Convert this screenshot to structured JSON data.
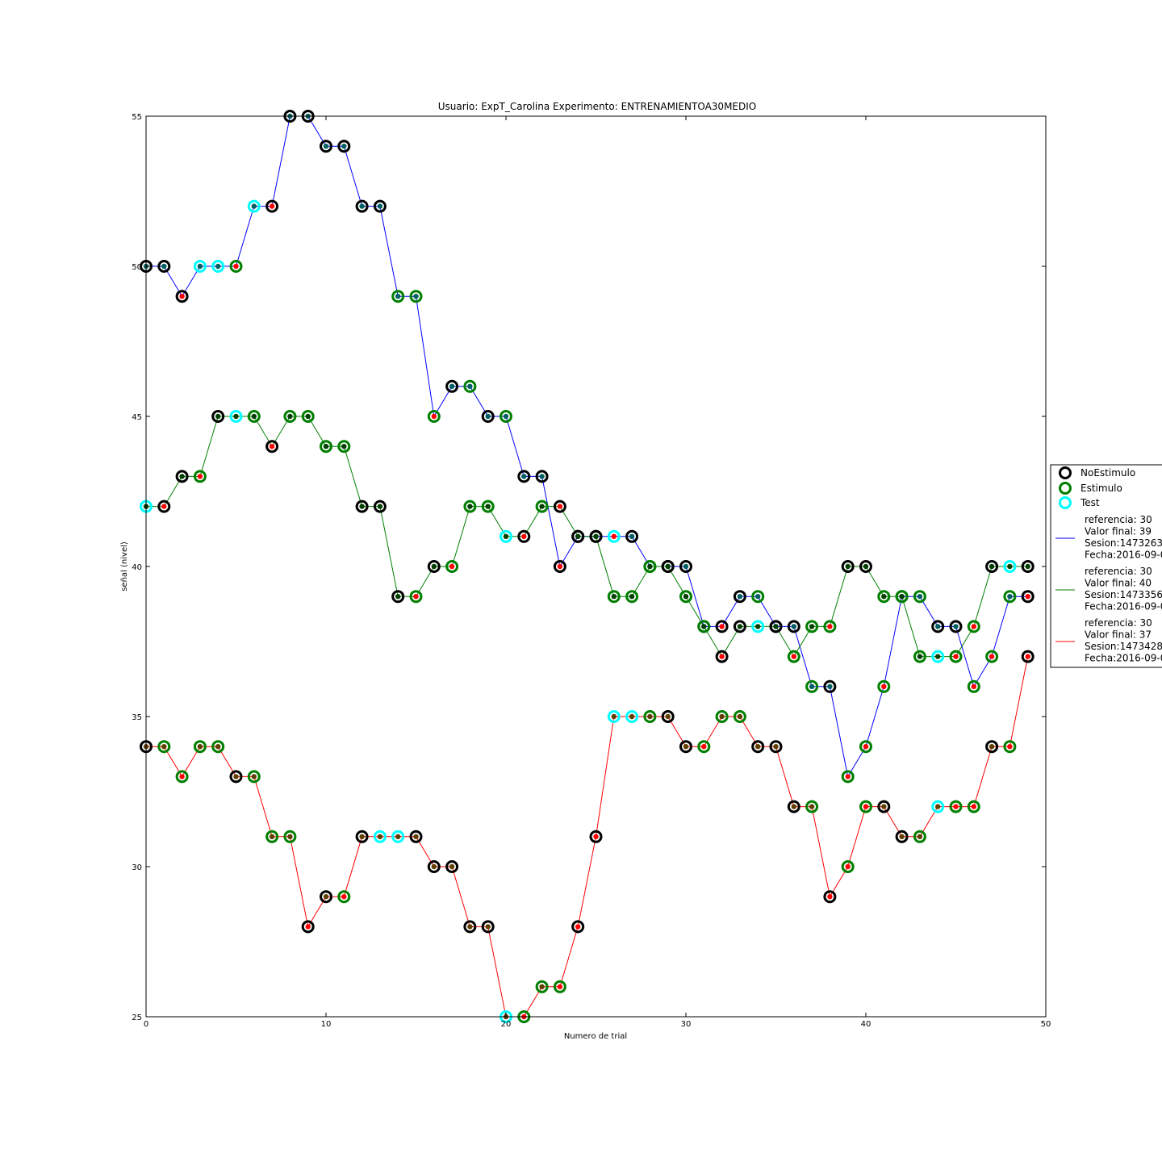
{
  "chart_data": {
    "type": "line",
    "title": "Usuario: ExpT_Carolina Experimento: ENTRENAMIENTOA30MEDIO",
    "xlabel": "Numero de trial",
    "ylabel": "señal (nivel)",
    "xlim": [
      0,
      50
    ],
    "ylim": [
      25,
      55
    ],
    "xticks": [
      "0",
      "10",
      "20",
      "30",
      "40",
      "50"
    ],
    "yticks": [
      "25",
      "30",
      "35",
      "40",
      "45",
      "50",
      "55"
    ],
    "grid": false,
    "legend_position": "right",
    "marker_legend": [
      {
        "label": "NoEstimulo",
        "color": "#000000"
      },
      {
        "label": "Estimulo",
        "color": "#007f00"
      },
      {
        "label": "Test",
        "color": "#00ffff"
      }
    ],
    "marker_codes": {
      "N": "NoEstimulo",
      "E": "Estimulo",
      "T": "Test"
    },
    "series": [
      {
        "color": "#0000ff",
        "legend_lines": [
          "referencia: 30",
          "Valor final: 39",
          "Sesion:1473263",
          "Fecha:2016-09-0"
        ],
        "x": [
          0,
          1,
          2,
          3,
          4,
          5,
          6,
          7,
          8,
          9,
          10,
          11,
          12,
          13,
          14,
          15,
          16,
          17,
          18,
          19,
          20,
          21,
          22,
          23,
          24,
          25,
          26,
          27,
          28,
          29,
          30,
          31,
          32,
          33,
          34,
          35,
          36,
          37,
          38,
          39,
          40,
          41,
          42,
          43,
          44,
          45,
          46,
          47,
          48,
          49
        ],
        "y": [
          50,
          50,
          49,
          50,
          50,
          50,
          52,
          52,
          55,
          55,
          54,
          54,
          52,
          52,
          49,
          49,
          45,
          46,
          46,
          45,
          45,
          43,
          43,
          40,
          41,
          41,
          41,
          41,
          40,
          40,
          40,
          38,
          38,
          39,
          39,
          38,
          38,
          36,
          36,
          33,
          34,
          36,
          39,
          39,
          38,
          38,
          36,
          37,
          39,
          39
        ],
        "markers": [
          "N",
          "N",
          "N",
          "T",
          "T",
          "E",
          "T",
          "N",
          "N",
          "N",
          "N",
          "N",
          "N",
          "N",
          "E",
          "E",
          "E",
          "N",
          "E",
          "N",
          "E",
          "N",
          "N",
          "N",
          "N",
          "N",
          "T",
          "N",
          "E",
          "N",
          "N",
          "N",
          "N",
          "N",
          "E",
          "N",
          "N",
          "E",
          "N",
          "E",
          "E",
          "E",
          "E",
          "E",
          "N",
          "N",
          "E",
          "E",
          "E",
          "N"
        ],
        "dot_colors": [
          "#005f5f",
          "#005f5f",
          "#ff0000",
          "#005f5f",
          "#005f5f",
          "#ff0000",
          "#005f5f",
          "#ff0000",
          "#005f5f",
          "#005f5f",
          "#005f5f",
          "#005f5f",
          "#005f5f",
          "#005f5f",
          "#005f5f",
          "#005f5f",
          "#ff0000",
          "#005f5f",
          "#005f5f",
          "#005f5f",
          "#005f5f",
          "#005f5f",
          "#005f5f",
          "#ff0000",
          "#005f5f",
          "#005f5f",
          "#ff0000",
          "#005f5f",
          "#005f5f",
          "#005f5f",
          "#005f5f",
          "#005f5f",
          "#ff0000",
          "#005f5f",
          "#005f5f",
          "#005f5f",
          "#005f5f",
          "#005f5f",
          "#005f5f",
          "#ff0000",
          "#ff0000",
          "#ff0000",
          "#005f5f",
          "#005f5f",
          "#005f5f",
          "#005f5f",
          "#ff0000",
          "#ff0000",
          "#005f5f",
          "#ff0000"
        ]
      },
      {
        "color": "#007f00",
        "legend_lines": [
          "referencia: 30",
          "Valor final: 40",
          "Sesion:1473356",
          "Fecha:2016-09-0"
        ],
        "x": [
          0,
          1,
          2,
          3,
          4,
          5,
          6,
          7,
          8,
          9,
          10,
          11,
          12,
          13,
          14,
          15,
          16,
          17,
          18,
          19,
          20,
          21,
          22,
          23,
          24,
          25,
          26,
          27,
          28,
          29,
          30,
          31,
          32,
          33,
          34,
          35,
          36,
          37,
          38,
          39,
          40,
          41,
          42,
          43,
          44,
          45,
          46,
          47,
          48,
          49
        ],
        "y": [
          42,
          42,
          43,
          43,
          45,
          45,
          45,
          44,
          45,
          45,
          44,
          44,
          42,
          42,
          39,
          39,
          40,
          40,
          42,
          42,
          41,
          41,
          42,
          42,
          41,
          41,
          39,
          39,
          40,
          40,
          39,
          38,
          37,
          38,
          38,
          38,
          37,
          38,
          38,
          40,
          40,
          39,
          39,
          37,
          37,
          37,
          38,
          40,
          40,
          40
        ],
        "markers": [
          "T",
          "N",
          "N",
          "E",
          "N",
          "T",
          "E",
          "N",
          "E",
          "E",
          "E",
          "E",
          "N",
          "N",
          "N",
          "E",
          "N",
          "E",
          "E",
          "E",
          "T",
          "N",
          "E",
          "N",
          "N",
          "N",
          "E",
          "E",
          "E",
          "N",
          "E",
          "E",
          "N",
          "N",
          "T",
          "N",
          "E",
          "E",
          "E",
          "N",
          "N",
          "E",
          "E",
          "E",
          "T",
          "E",
          "E",
          "N",
          "T",
          "N"
        ],
        "dot_colors": [
          "#003f00",
          "#ff0000",
          "#003f00",
          "#ff0000",
          "#003f00",
          "#003f00",
          "#003f00",
          "#ff0000",
          "#003f00",
          "#003f00",
          "#003f00",
          "#003f00",
          "#003f00",
          "#003f00",
          "#003f00",
          "#ff0000",
          "#003f00",
          "#ff0000",
          "#003f00",
          "#003f00",
          "#003f00",
          "#ff0000",
          "#003f00",
          "#ff0000",
          "#003f00",
          "#003f00",
          "#003f00",
          "#003f00",
          "#003f00",
          "#003f00",
          "#003f00",
          "#003f00",
          "#ff0000",
          "#003f00",
          "#003f00",
          "#003f00",
          "#ff0000",
          "#003f00",
          "#ff0000",
          "#003f00",
          "#003f00",
          "#003f00",
          "#003f00",
          "#003f00",
          "#003f00",
          "#ff0000",
          "#ff0000",
          "#003f00",
          "#003f00",
          "#003f00"
        ]
      },
      {
        "color": "#ff0000",
        "legend_lines": [
          "referencia: 30",
          "Valor final: 37",
          "Sesion:1473428",
          "Fecha:2016-09-0"
        ],
        "x": [
          0,
          1,
          2,
          3,
          4,
          5,
          6,
          7,
          8,
          9,
          10,
          11,
          12,
          13,
          14,
          15,
          16,
          17,
          18,
          19,
          20,
          21,
          22,
          23,
          24,
          25,
          26,
          27,
          28,
          29,
          30,
          31,
          32,
          33,
          34,
          35,
          36,
          37,
          38,
          39,
          40,
          41,
          42,
          43,
          44,
          45,
          46,
          47,
          48,
          49
        ],
        "y": [
          34,
          34,
          33,
          34,
          34,
          33,
          33,
          31,
          31,
          28,
          29,
          29,
          31,
          31,
          31,
          31,
          30,
          30,
          28,
          28,
          25,
          25,
          26,
          26,
          28,
          31,
          35,
          35,
          35,
          35,
          34,
          34,
          35,
          35,
          34,
          34,
          32,
          32,
          29,
          30,
          32,
          32,
          31,
          31,
          32,
          32,
          32,
          34,
          34,
          37
        ],
        "markers": [
          "N",
          "E",
          "E",
          "E",
          "E",
          "N",
          "E",
          "E",
          "E",
          "N",
          "N",
          "E",
          "N",
          "T",
          "T",
          "N",
          "N",
          "N",
          "N",
          "N",
          "T",
          "E",
          "E",
          "E",
          "N",
          "N",
          "T",
          "T",
          "E",
          "N",
          "N",
          "E",
          "E",
          "E",
          "N",
          "N",
          "N",
          "E",
          "N",
          "E",
          "E",
          "N",
          "N",
          "E",
          "T",
          "E",
          "E",
          "N",
          "E",
          "N"
        ],
        "dot_colors": [
          "#5f3f00",
          "#5f3f00",
          "#ff0000",
          "#5f3f00",
          "#5f3f00",
          "#5f3f00",
          "#5f3f00",
          "#5f3f00",
          "#5f3f00",
          "#ff0000",
          "#5f3f00",
          "#ff0000",
          "#5f3f00",
          "#5f3f00",
          "#5f3f00",
          "#5f3f00",
          "#5f3f00",
          "#5f3f00",
          "#5f3f00",
          "#5f3f00",
          "#5f3f00",
          "#ff0000",
          "#5f3f00",
          "#ff0000",
          "#ff0000",
          "#ff0000",
          "#5f3f00",
          "#5f3f00",
          "#5f3f00",
          "#5f3f00",
          "#5f3f00",
          "#ff0000",
          "#5f3f00",
          "#5f3f00",
          "#5f3f00",
          "#5f3f00",
          "#5f3f00",
          "#5f3f00",
          "#ff0000",
          "#ff0000",
          "#ff0000",
          "#5f3f00",
          "#5f3f00",
          "#5f3f00",
          "#5f3f00",
          "#ff0000",
          "#ff0000",
          "#5f3f00",
          "#ff0000",
          "#ff0000"
        ]
      }
    ]
  }
}
